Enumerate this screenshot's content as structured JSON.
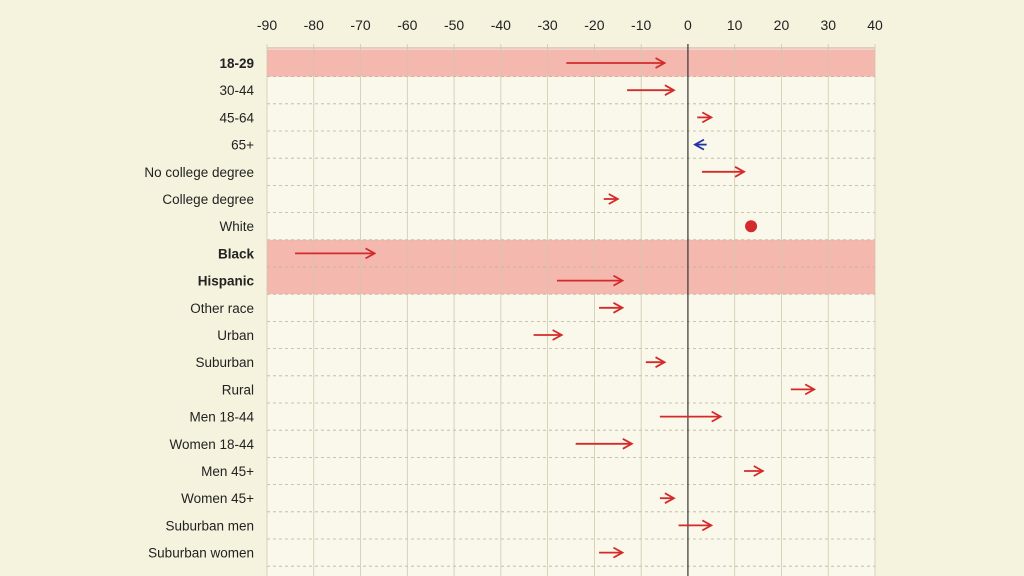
{
  "chart_data": {
    "type": "arrow",
    "title": "",
    "xlabel": "",
    "ylabel": "",
    "xlim": [
      -90,
      40
    ],
    "xticks": [
      -90,
      -80,
      -70,
      -60,
      -50,
      -40,
      -30,
      -20,
      -10,
      0,
      10,
      20,
      30,
      40
    ],
    "grid": true,
    "colors": {
      "shift_right": "#d42a2a",
      "shift_left": "#2233aa",
      "highlight_band": "#f5b8ae",
      "background": "#f5f2de",
      "plot_background": "#faf8ea",
      "zero_line": "#333333"
    },
    "rows": [
      {
        "label": "18-29",
        "from": -26,
        "to": -5,
        "bold": true,
        "highlight": true,
        "marker": "arrow"
      },
      {
        "label": "30-44",
        "from": -13,
        "to": -3,
        "bold": false,
        "highlight": false,
        "marker": "arrow"
      },
      {
        "label": "45-64",
        "from": 2,
        "to": 5,
        "bold": false,
        "highlight": false,
        "marker": "arrow"
      },
      {
        "label": "65+",
        "from": 4,
        "to": 1.5,
        "bold": false,
        "highlight": false,
        "marker": "arrow"
      },
      {
        "label": "No college degree",
        "from": 3,
        "to": 12,
        "bold": false,
        "highlight": false,
        "marker": "arrow"
      },
      {
        "label": "College degree",
        "from": -18,
        "to": -15,
        "bold": false,
        "highlight": false,
        "marker": "arrow"
      },
      {
        "label": "White",
        "from": 13.5,
        "to": 13.5,
        "bold": false,
        "highlight": false,
        "marker": "dot"
      },
      {
        "label": "Black",
        "from": -84,
        "to": -67,
        "bold": true,
        "highlight": true,
        "marker": "arrow"
      },
      {
        "label": "Hispanic",
        "from": -28,
        "to": -14,
        "bold": true,
        "highlight": true,
        "marker": "arrow"
      },
      {
        "label": "Other race",
        "from": -19,
        "to": -14,
        "bold": false,
        "highlight": false,
        "marker": "arrow"
      },
      {
        "label": "Urban",
        "from": -33,
        "to": -27,
        "bold": false,
        "highlight": false,
        "marker": "arrow"
      },
      {
        "label": "Suburban",
        "from": -9,
        "to": -5,
        "bold": false,
        "highlight": false,
        "marker": "arrow"
      },
      {
        "label": "Rural",
        "from": 22,
        "to": 27,
        "bold": false,
        "highlight": false,
        "marker": "arrow"
      },
      {
        "label": "Men 18-44",
        "from": -6,
        "to": 7,
        "bold": false,
        "highlight": false,
        "marker": "arrow"
      },
      {
        "label": "Women 18-44",
        "from": -24,
        "to": -12,
        "bold": false,
        "highlight": false,
        "marker": "arrow"
      },
      {
        "label": "Men 45+",
        "from": 12,
        "to": 16,
        "bold": false,
        "highlight": false,
        "marker": "arrow"
      },
      {
        "label": "Women 45+",
        "from": -6,
        "to": -3,
        "bold": false,
        "highlight": false,
        "marker": "arrow"
      },
      {
        "label": "Suburban men",
        "from": -2,
        "to": 5,
        "bold": false,
        "highlight": false,
        "marker": "arrow"
      },
      {
        "label": "Suburban women",
        "from": -19,
        "to": -14,
        "bold": false,
        "highlight": false,
        "marker": "arrow"
      }
    ]
  }
}
